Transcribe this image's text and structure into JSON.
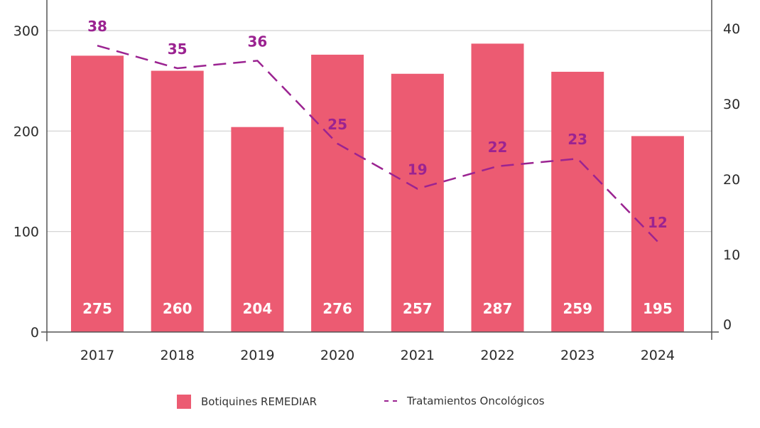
{
  "chart_data": {
    "type": "bar",
    "title": "",
    "xlabel": "",
    "categories": [
      "2017",
      "2018",
      "2019",
      "2020",
      "2021",
      "2022",
      "2023",
      "2024"
    ],
    "series": [
      {
        "name": "Botiquines REMEDIAR",
        "type": "bar",
        "axis": "left",
        "color": "#EC5B72",
        "values": [
          275,
          260,
          204,
          276,
          257,
          287,
          259,
          195
        ],
        "labels": [
          "275",
          "260",
          "204",
          "276",
          "257",
          "287",
          "259",
          "195"
        ]
      },
      {
        "name": "Tratamientos Oncológicos",
        "type": "line",
        "style": "dashed",
        "axis": "right",
        "color": "#9B2391",
        "values": [
          38,
          35,
          36,
          25,
          19,
          22,
          23,
          12
        ],
        "labels": [
          "38",
          "35",
          "36",
          "25",
          "19",
          "22",
          "23",
          "12"
        ]
      }
    ],
    "y_left": {
      "label": "",
      "ylim": [
        0,
        300
      ],
      "ticks": [
        0,
        100,
        200,
        300
      ],
      "tick_labels": [
        "0",
        "100",
        "200",
        "300"
      ]
    },
    "y_right": {
      "label": "",
      "ylim": [
        0,
        40
      ],
      "ticks": [
        0,
        10,
        20,
        30,
        40
      ],
      "tick_labels": [
        "0",
        "10",
        "20",
        "30",
        "40"
      ]
    },
    "grid": true,
    "legend_position": "bottom-center"
  }
}
